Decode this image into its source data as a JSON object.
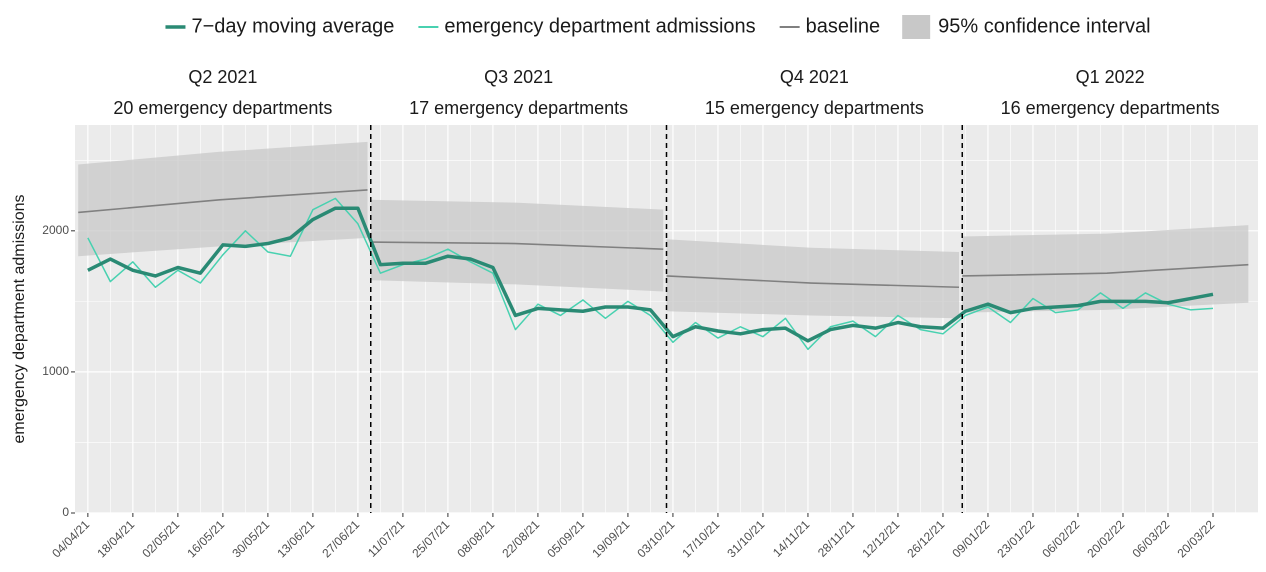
{
  "chart_data": {
    "type": "line",
    "y_label": "emergency department admissions",
    "legend_position": "top",
    "xlim": [
      "31/03/21",
      "03/04/22"
    ],
    "ylim": [
      0,
      2750
    ],
    "yticks": [
      0,
      1000,
      2000
    ],
    "xticks": [
      "04/04/21",
      "18/04/21",
      "02/05/21",
      "16/05/21",
      "30/05/21",
      "13/06/21",
      "27/06/21",
      "11/07/21",
      "25/07/21",
      "08/08/21",
      "22/08/21",
      "05/09/21",
      "19/09/21",
      "03/10/21",
      "17/10/21",
      "31/10/21",
      "14/11/21",
      "28/11/21",
      "12/12/21",
      "26/12/21",
      "09/01/22",
      "23/01/22",
      "06/02/22",
      "20/02/22",
      "06/03/22",
      "20/03/22"
    ],
    "grid": true,
    "vlines": [
      "01/07/21",
      "01/10/21",
      "01/01/22"
    ],
    "panels": [
      {
        "label": "Q2 2021",
        "subtitle": "20 emergency departments",
        "start": "31/03/21",
        "end": "01/07/21"
      },
      {
        "label": "Q3 2021",
        "subtitle": "17 emergency departments",
        "start": "01/07/21",
        "end": "01/10/21"
      },
      {
        "label": "Q4 2021",
        "subtitle": "15 emergency departments",
        "start": "01/10/21",
        "end": "01/01/22"
      },
      {
        "label": "Q1 2022",
        "subtitle": "16 emergency departments",
        "start": "01/01/22",
        "end": "03/04/22"
      }
    ],
    "x": [
      "04/04/21",
      "11/04/21",
      "18/04/21",
      "25/04/21",
      "02/05/21",
      "09/05/21",
      "16/05/21",
      "23/05/21",
      "30/05/21",
      "06/06/21",
      "13/06/21",
      "20/06/21",
      "27/06/21",
      "04/07/21",
      "11/07/21",
      "18/07/21",
      "25/07/21",
      "01/08/21",
      "08/08/21",
      "15/08/21",
      "22/08/21",
      "29/08/21",
      "05/09/21",
      "12/09/21",
      "19/09/21",
      "26/09/21",
      "03/10/21",
      "10/10/21",
      "17/10/21",
      "24/10/21",
      "31/10/21",
      "07/11/21",
      "14/11/21",
      "21/11/21",
      "28/11/21",
      "05/12/21",
      "12/12/21",
      "19/12/21",
      "26/12/21",
      "02/01/22",
      "09/01/22",
      "16/01/22",
      "23/01/22",
      "30/01/22",
      "06/02/22",
      "13/02/22",
      "20/02/22",
      "27/02/22",
      "06/03/22",
      "13/03/22",
      "20/03/22"
    ],
    "series": [
      {
        "name": "7−day moving average",
        "color": "#2a8a74",
        "width": 3.5,
        "values": [
          1720,
          1800,
          1720,
          1680,
          1740,
          1700,
          1900,
          1890,
          1910,
          1950,
          2080,
          2160,
          2160,
          1760,
          1770,
          1770,
          1820,
          1800,
          1740,
          1400,
          1450,
          1440,
          1430,
          1460,
          1460,
          1440,
          1250,
          1320,
          1290,
          1270,
          1300,
          1310,
          1220,
          1300,
          1330,
          1310,
          1350,
          1320,
          1310,
          1430,
          1480,
          1420,
          1450,
          1460,
          1470,
          1500,
          1500,
          1500,
          1490,
          1520,
          1550
        ]
      },
      {
        "name": "emergency department admissions",
        "color": "#48d1b0",
        "width": 1.5,
        "values": [
          1950,
          1640,
          1780,
          1600,
          1720,
          1630,
          1830,
          2000,
          1850,
          1820,
          2150,
          2230,
          2050,
          1700,
          1760,
          1800,
          1870,
          1780,
          1700,
          1300,
          1480,
          1400,
          1510,
          1380,
          1500,
          1400,
          1210,
          1350,
          1240,
          1320,
          1250,
          1380,
          1160,
          1320,
          1360,
          1250,
          1400,
          1300,
          1270,
          1400,
          1460,
          1350,
          1520,
          1420,
          1440,
          1560,
          1450,
          1560,
          1480,
          1440,
          1450
        ]
      }
    ],
    "baseline": {
      "name": "baseline",
      "color": "#808080"
    },
    "band": {
      "name": "95% confidence interval",
      "color": "#c8c8c8"
    },
    "segments": [
      {
        "x": [
          "01/04/21",
          "15/05/21",
          "30/06/21"
        ],
        "baseline": [
          2130,
          2220,
          2290
        ],
        "lower": [
          1820,
          1890,
          1950
        ],
        "upper": [
          2470,
          2560,
          2630
        ]
      },
      {
        "x": [
          "01/07/21",
          "15/08/21",
          "30/09/21"
        ],
        "baseline": [
          1920,
          1910,
          1870
        ],
        "lower": [
          1650,
          1620,
          1570
        ],
        "upper": [
          2220,
          2200,
          2150
        ]
      },
      {
        "x": [
          "01/10/21",
          "15/11/21",
          "31/12/21"
        ],
        "baseline": [
          1680,
          1630,
          1600
        ],
        "lower": [
          1430,
          1400,
          1380
        ],
        "upper": [
          1940,
          1880,
          1850
        ]
      },
      {
        "x": [
          "01/01/22",
          "15/02/22",
          "31/03/22"
        ],
        "baseline": [
          1680,
          1700,
          1760
        ],
        "lower": [
          1420,
          1440,
          1490
        ],
        "upper": [
          1960,
          1980,
          2040
        ]
      }
    ]
  }
}
